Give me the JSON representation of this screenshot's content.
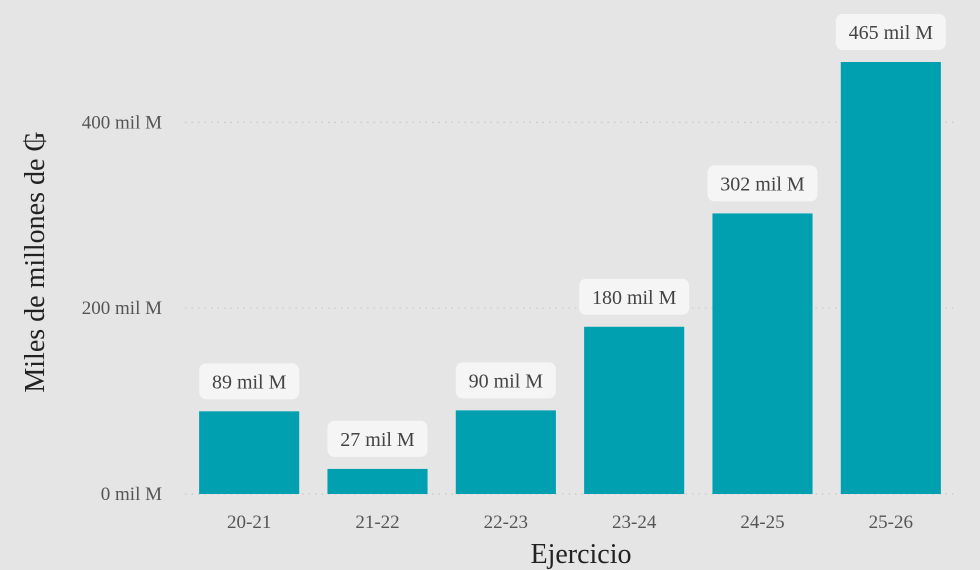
{
  "chart_data": {
    "type": "bar",
    "title": "",
    "xlabel": "Ejercicio",
    "ylabel": "Miles de millones de ₲",
    "categories": [
      "20-21",
      "21-22",
      "22-23",
      "23-24",
      "24-25",
      "25-26"
    ],
    "values": [
      89,
      27,
      90,
      180,
      302,
      465
    ],
    "data_labels": [
      "89 mil M",
      "27 mil M",
      "90 mil M",
      "180 mil M",
      "302 mil M",
      "465 mil M"
    ],
    "ylim": [
      0,
      465
    ],
    "yticks": [
      0,
      200,
      400
    ],
    "ytick_labels": [
      "0 mil M",
      "200 mil M",
      "400 mil M"
    ],
    "grid": true,
    "legend": "none",
    "colors": {
      "background": "#e5e5e5",
      "bar": "#00a0b0",
      "grid": "#c8c8c8",
      "label_box": "#f5f5f5"
    }
  }
}
